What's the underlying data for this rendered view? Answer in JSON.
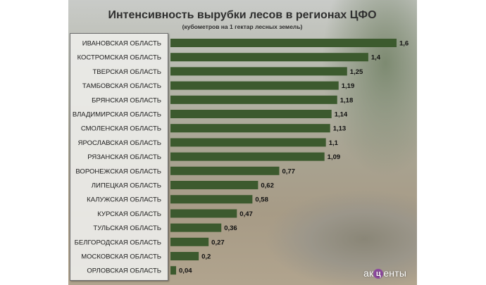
{
  "chart_data": {
    "type": "bar",
    "orientation": "horizontal",
    "title": "Интенсивность вырубки лесов в регионах ЦФО",
    "subtitle": "(кубометров на 1 гектар лесных земель)",
    "categories": [
      "ИВАНОВСКАЯ ОБЛАСТЬ",
      "КОСТРОМСКАЯ ОБЛАСТЬ",
      "ТВЕРСКАЯ ОБЛАСТЬ",
      "ТАМБОВСКАЯ ОБЛАСТЬ",
      "БРЯНСКАЯ ОБЛАСТЬ",
      "ВЛАДИМИРСКАЯ ОБЛАСТЬ",
      "СМОЛЕНСКАЯ ОБЛАСТЬ",
      "ЯРОСЛАВСКАЯ ОБЛАСТЬ",
      "РЯЗАНСКАЯ ОБЛАСТЬ",
      "ВОРОНЕЖСКАЯ ОБЛАСТЬ",
      "ЛИПЕЦКАЯ ОБЛАСТЬ",
      "КАЛУЖСКАЯ ОБЛАСТЬ",
      "КУРСКАЯ ОБЛАСТЬ",
      "ТУЛЬСКАЯ ОБЛАСТЬ",
      "БЕЛГОРОДСКАЯ ОБЛАСТЬ",
      "МОСКОВСКАЯ ОБЛАСТЬ",
      "ОРЛОВСКАЯ ОБЛАСТЬ"
    ],
    "values": [
      1.6,
      1.4,
      1.25,
      1.19,
      1.18,
      1.14,
      1.13,
      1.1,
      1.09,
      0.77,
      0.62,
      0.58,
      0.47,
      0.36,
      0.27,
      0.2,
      0.04
    ],
    "value_labels": [
      "1,6",
      "1,4",
      "1,25",
      "1,19",
      "1,18",
      "1,14",
      "1,13",
      "1,1",
      "1,09",
      "0,77",
      "0,62",
      "0,58",
      "0,47",
      "0,36",
      "0,27",
      "0,2",
      "0,04"
    ],
    "xlim": [
      0,
      1.6
    ],
    "grid": false,
    "bar_color": "#3c5a2e"
  },
  "watermark": {
    "left": "ак",
    "mid": "ц",
    "right": "енты"
  }
}
